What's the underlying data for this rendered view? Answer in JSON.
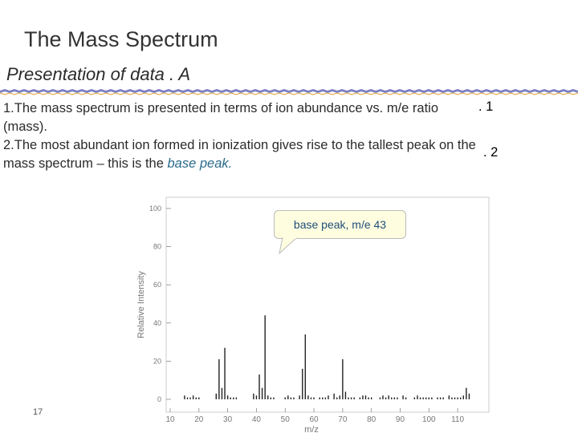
{
  "slide": {
    "title": "The Mass Spectrum",
    "subtitle": "Presentation of data   . A",
    "point1_text": "1.The mass spectrum is presented in terms of ion abundance vs. m/e ratio (mass).",
    "point1_num": ". 1",
    "point2_text_start": " 2.The most abundant ion formed in ionization gives rise to the tallest peak on the mass spectrum – this is the ",
    "point2_highlight": "base peak.",
    "point2_num": ". 2",
    "page_number": "17",
    "callout": "base peak, m/e 43"
  },
  "colors": {
    "ribbon": "#7b7fc4",
    "highlight": "#2b6a8a"
  },
  "chart_data": {
    "type": "bar",
    "xlabel": "m/z",
    "ylabel": "Relative Intensity",
    "xlim": [
      10,
      115
    ],
    "ylim": [
      0,
      100
    ],
    "xticks": [
      10,
      20,
      30,
      40,
      50,
      60,
      70,
      80,
      90,
      100,
      110
    ],
    "yticks": [
      0,
      20,
      40,
      60,
      80,
      100
    ],
    "x": [
      15,
      16,
      17,
      18,
      19,
      20,
      26,
      27,
      28,
      29,
      30,
      31,
      32,
      33,
      39,
      40,
      41,
      42,
      43,
      44,
      45,
      46,
      50,
      51,
      52,
      53,
      55,
      56,
      57,
      58,
      59,
      60,
      62,
      63,
      64,
      65,
      67,
      68,
      69,
      70,
      71,
      72,
      73,
      74,
      76,
      77,
      78,
      79,
      80,
      83,
      84,
      85,
      86,
      87,
      88,
      89,
      91,
      92,
      95,
      96,
      97,
      98,
      99,
      100,
      101,
      103,
      104,
      105,
      107,
      108,
      109,
      110,
      111,
      112,
      113,
      114
    ],
    "values": [
      2,
      1,
      1,
      2,
      1,
      1,
      3,
      21,
      6,
      27,
      2,
      1,
      1,
      1,
      3,
      2,
      13,
      6,
      44,
      2,
      1,
      1,
      1,
      2,
      1,
      1,
      2,
      16,
      34,
      2,
      1,
      1,
      1,
      1,
      1,
      2,
      3,
      1,
      2,
      21,
      4,
      1,
      1,
      1,
      1,
      2,
      2,
      1,
      1,
      1,
      2,
      1,
      2,
      1,
      1,
      1,
      2,
      1,
      1,
      2,
      1,
      1,
      1,
      1,
      1,
      1,
      1,
      1,
      2,
      1,
      1,
      1,
      1,
      2,
      6,
      3
    ]
  }
}
